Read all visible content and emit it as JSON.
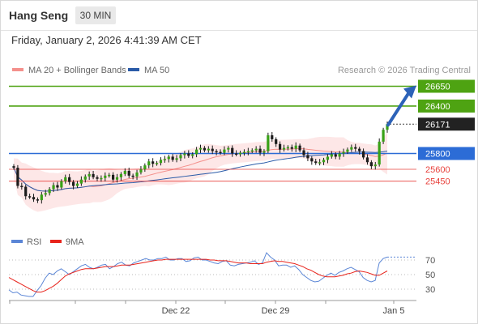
{
  "header": {
    "instrument": "Hang Seng",
    "timeframe": "30 MIN"
  },
  "timestamp": "Friday, January 2, 2026 4:41:39 AM CET",
  "legend": {
    "ma20_bb": {
      "label": "MA 20 + Bollinger Bands",
      "color": "#f4908c"
    },
    "ma50": {
      "label": "MA 50",
      "color": "#2a5ba8"
    }
  },
  "credit": "Research © 2026 Trading Central",
  "chart_data": {
    "type": "candlestick",
    "current_price": 26171,
    "price_levels": [
      {
        "value": 26650,
        "label": "26650",
        "kind": "resistance",
        "color": "#4ea312"
      },
      {
        "value": 26400,
        "label": "26400",
        "kind": "resistance",
        "color": "#4ea312"
      },
      {
        "value": 25800,
        "label": "25800",
        "kind": "pivot",
        "color": "#2c6cd6"
      },
      {
        "value": 25600,
        "label": "25600",
        "kind": "support",
        "color": "#e8413c"
      },
      {
        "value": 25450,
        "label": "25450",
        "kind": "support",
        "color": "#e8413c"
      }
    ],
    "current_price_label": "26171",
    "forecast_arrow": {
      "from": 26171,
      "to": 26650,
      "color": "#2c62b8"
    },
    "x_ticks": [
      "Dec 22",
      "Dec 29",
      "Jan 5"
    ],
    "ylim": [
      25200,
      26750
    ],
    "close_series": [
      25620,
      25390,
      25380,
      25260,
      25250,
      25220,
      25210,
      25280,
      25300,
      25350,
      25400,
      25370,
      25450,
      25500,
      25440,
      25390,
      25420,
      25470,
      25510,
      25540,
      25500,
      25480,
      25490,
      25520,
      25530,
      25470,
      25500,
      25540,
      25580,
      25520,
      25510,
      25560,
      25600,
      25650,
      25700,
      25670,
      25680,
      25720,
      25730,
      25760,
      25720,
      25740,
      25780,
      25800,
      25770,
      25790,
      25850,
      25870,
      25840,
      25860,
      25830,
      25820,
      25810,
      25850,
      25870,
      25800,
      25790,
      25810,
      25820,
      25830,
      25840,
      25860,
      25810,
      25830,
      26030,
      25980,
      25920,
      25850,
      25870,
      25880,
      25860,
      25900,
      25840,
      25780,
      25740,
      25700,
      25680,
      25690,
      25720,
      25760,
      25790,
      25760,
      25800,
      25820,
      25850,
      25880,
      25860,
      25830,
      25750,
      25690,
      25640,
      25660,
      25950,
      26100,
      26171
    ]
  },
  "rsi": {
    "legend": [
      {
        "label": "RSI",
        "color": "#5b86d6"
      },
      {
        "label": "9MA",
        "color": "#e8241c"
      }
    ],
    "levels": [
      70,
      50,
      30
    ],
    "rsi_series": [
      29,
      25,
      26,
      22,
      21,
      20,
      20,
      28,
      35,
      45,
      52,
      50,
      55,
      58,
      54,
      50,
      54,
      58,
      62,
      64,
      60,
      58,
      60,
      63,
      64,
      58,
      61,
      65,
      67,
      63,
      62,
      66,
      68,
      70,
      72,
      70,
      70,
      72,
      72,
      74,
      70,
      70,
      72,
      72,
      68,
      69,
      73,
      74,
      70,
      70,
      68,
      66,
      65,
      68,
      69,
      63,
      62,
      64,
      65,
      66,
      67,
      69,
      64,
      66,
      80,
      74,
      70,
      62,
      63,
      63,
      60,
      62,
      57,
      50,
      46,
      42,
      40,
      41,
      45,
      49,
      52,
      49,
      53,
      55,
      58,
      60,
      57,
      54,
      46,
      42,
      40,
      42,
      66,
      72,
      74
    ],
    "ma_series": [
      46,
      43,
      40,
      37,
      34,
      31,
      28,
      26,
      26,
      28,
      31,
      34,
      38,
      43,
      48,
      51,
      53,
      55,
      57,
      58,
      58,
      58,
      59,
      60,
      61,
      61,
      61,
      62,
      63,
      63,
      63,
      64,
      65,
      66,
      67,
      68,
      69,
      70,
      70,
      71,
      71,
      71,
      71,
      71,
      71,
      71,
      71,
      71,
      71,
      71,
      70,
      70,
      69,
      69,
      69,
      68,
      67,
      66,
      66,
      66,
      65,
      65,
      65,
      65,
      67,
      68,
      69,
      68,
      68,
      67,
      66,
      65,
      63,
      61,
      58,
      56,
      53,
      50,
      48,
      47,
      47,
      47,
      48,
      49,
      51,
      52,
      54,
      55,
      54,
      53,
      51,
      49,
      49,
      52,
      55
    ]
  }
}
